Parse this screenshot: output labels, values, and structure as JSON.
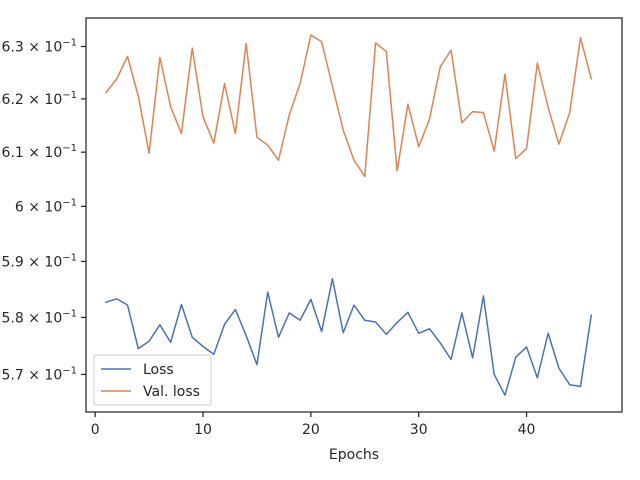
{
  "chart_data": {
    "type": "line",
    "xlabel": "Epochs",
    "ylabel": "",
    "yscale": "log",
    "xlim": [
      -0.85,
      48.85
    ],
    "ylim": [
      0.5635,
      0.6355
    ],
    "grid": false,
    "legend_position": "lower-left",
    "x_ticks": [
      0,
      10,
      20,
      30,
      40
    ],
    "x_tick_labels": [
      "0",
      "10",
      "20",
      "30",
      "40"
    ],
    "y_ticks": [
      0.57,
      0.58,
      0.59,
      0.6,
      0.61,
      0.62,
      0.63
    ],
    "y_tick_labels": [
      "5.7",
      "5.8",
      "5.9",
      "6",
      "6.1",
      "6.2",
      "6.3"
    ],
    "y_tick_exponent": "−1",
    "x": [
      1,
      2,
      3,
      4,
      5,
      6,
      7,
      8,
      9,
      10,
      11,
      12,
      13,
      14,
      15,
      16,
      17,
      18,
      19,
      20,
      21,
      22,
      23,
      24,
      25,
      26,
      27,
      28,
      29,
      30,
      31,
      32,
      33,
      34,
      35,
      36,
      37,
      38,
      39,
      40,
      41,
      42,
      43,
      44,
      45,
      46
    ],
    "series": [
      {
        "name": "Loss",
        "color": "#4c72b0",
        "values": [
          0.5827,
          0.5833,
          0.5822,
          0.5745,
          0.5758,
          0.5787,
          0.5756,
          0.5823,
          0.5765,
          0.5749,
          0.5735,
          0.5788,
          0.5814,
          0.5768,
          0.5717,
          0.5845,
          0.5765,
          0.5808,
          0.5795,
          0.5832,
          0.5775,
          0.5869,
          0.5773,
          0.5822,
          0.5795,
          0.5792,
          0.577,
          0.5791,
          0.5809,
          0.5772,
          0.578,
          0.5755,
          0.5726,
          0.5808,
          0.5729,
          0.5838,
          0.57,
          0.5664,
          0.573,
          0.5748,
          0.5694,
          0.5772,
          0.5711,
          0.5682,
          0.5679,
          0.5804
        ]
      },
      {
        "name": "Val. loss",
        "color": "#dd8452",
        "values": [
          0.6212,
          0.6238,
          0.6281,
          0.6205,
          0.6098,
          0.6279,
          0.6185,
          0.6135,
          0.6297,
          0.6166,
          0.6117,
          0.6229,
          0.6135,
          0.6306,
          0.6128,
          0.6113,
          0.6085,
          0.617,
          0.6229,
          0.6322,
          0.6309,
          0.6224,
          0.6141,
          0.6085,
          0.6055,
          0.6307,
          0.629,
          0.6065,
          0.619,
          0.611,
          0.6162,
          0.6261,
          0.6293,
          0.6155,
          0.6176,
          0.6174,
          0.6102,
          0.6247,
          0.6088,
          0.6107,
          0.6268,
          0.6184,
          0.6115,
          0.6174,
          0.6317,
          0.6238
        ]
      }
    ]
  }
}
